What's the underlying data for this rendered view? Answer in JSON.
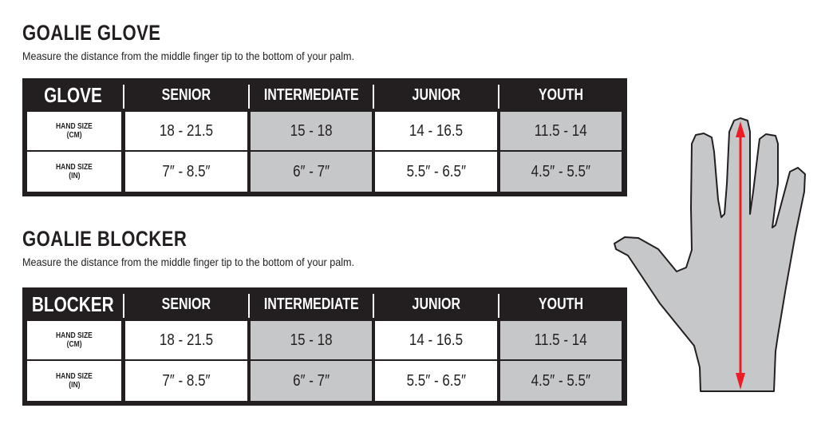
{
  "sections": [
    {
      "title": "GOALIE GLOVE",
      "description": "Measure the distance from the middle finger tip to the bottom of your palm.",
      "table": {
        "header": [
          "GLOVE",
          "SENIOR",
          "INTERMEDIATE",
          "JUNIOR",
          "YOUTH"
        ],
        "rows": [
          {
            "label1": "HAND SIZE",
            "label2": "(CM)",
            "values": [
              "18 - 21.5",
              "15 - 18",
              "14 - 16.5",
              "11.5 - 14"
            ]
          },
          {
            "label1": "HAND SIZE",
            "label2": "(IN)",
            "values": [
              "7″ - 8.5″",
              "6″ - 7″",
              "5.5″ - 6.5″",
              "4.5″ - 5.5″"
            ]
          }
        ]
      }
    },
    {
      "title": "GOALIE BLOCKER",
      "description": "Measure the distance from the middle finger tip to the bottom of your palm.",
      "table": {
        "header": [
          "BLOCKER",
          "SENIOR",
          "INTERMEDIATE",
          "JUNIOR",
          "YOUTH"
        ],
        "rows": [
          {
            "label1": "HAND SIZE",
            "label2": "(CM)",
            "values": [
              "18 - 21.5",
              "15 - 18",
              "14 - 16.5",
              "11.5 - 14"
            ]
          },
          {
            "label1": "HAND SIZE",
            "label2": "(IN)",
            "values": [
              "7″ - 8.5″",
              "6″ - 7″",
              "5.5″ - 6.5″",
              "4.5″ - 5.5″"
            ]
          }
        ]
      }
    }
  ],
  "colors": {
    "dark": "#231f20",
    "gray_cell": "#c6c7c9",
    "hand_fill": "#c6c7c9",
    "arrow": "#ed1c24"
  },
  "illustration": {
    "icon": "hand-measurement-icon"
  }
}
